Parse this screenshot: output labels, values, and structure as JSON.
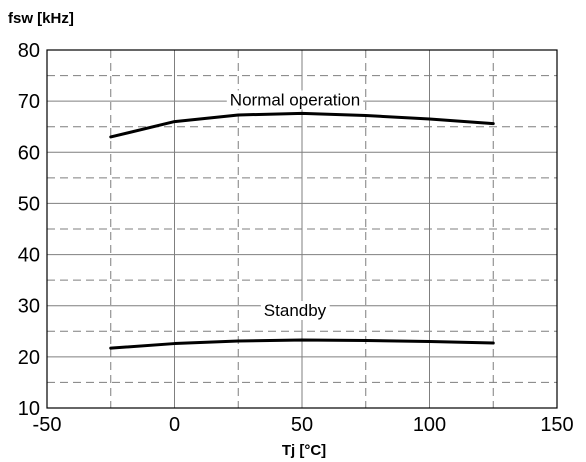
{
  "chart_data": {
    "type": "line",
    "ylabel": "fsw [kHz]",
    "xlabel": "Tj [°C]",
    "xlim": [
      -50,
      150
    ],
    "ylim": [
      10,
      80
    ],
    "x_ticks": [
      -50,
      0,
      50,
      100,
      150
    ],
    "y_ticks": [
      10,
      20,
      30,
      40,
      50,
      60,
      70,
      80
    ],
    "grid": true,
    "series": [
      {
        "name": "Normal operation",
        "x": [
          -25,
          0,
          25,
          50,
          75,
          100,
          125
        ],
        "y": [
          63.0,
          66.0,
          67.3,
          67.6,
          67.2,
          66.5,
          65.6
        ]
      },
      {
        "name": "Standby",
        "x": [
          -25,
          0,
          25,
          50,
          75,
          100,
          125
        ],
        "y": [
          21.7,
          22.6,
          23.1,
          23.3,
          23.2,
          23.0,
          22.7
        ]
      }
    ],
    "colors": {
      "line": "#000000",
      "grid": "#7f7f7f",
      "background": "#ffffff"
    }
  }
}
